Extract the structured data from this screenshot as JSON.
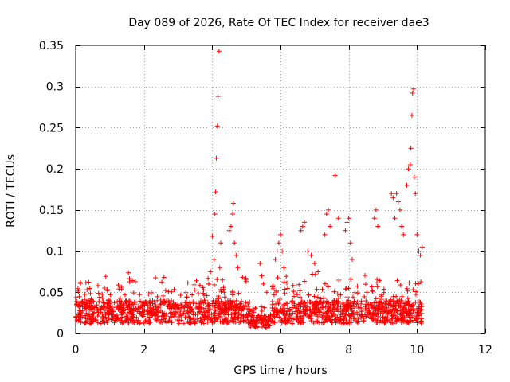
{
  "chart_data": {
    "type": "scatter",
    "title": "Day 089 of 2026, Rate Of TEC Index for receiver dae3",
    "xlabel": "GPS time / hours",
    "ylabel": "ROTI / TECUs",
    "xlim": [
      0,
      12
    ],
    "ylim": [
      0,
      0.35
    ],
    "x_ticks": [
      0,
      2,
      4,
      6,
      8,
      10,
      12
    ],
    "x_tick_labels": [
      "0",
      "2",
      "4",
      "6",
      "8",
      "10",
      "12"
    ],
    "y_ticks": [
      0,
      0.05,
      0.1,
      0.15,
      0.2,
      0.25,
      0.3,
      0.35
    ],
    "y_tick_labels": [
      "0",
      "0.05",
      "0.1",
      "0.15",
      "0.2",
      "0.25",
      "0.3",
      "0.35"
    ],
    "grid": true,
    "marker": "+",
    "color": "#ff0000",
    "series": [
      {
        "name": "ROTI",
        "points": [
          [
            4.0,
            0.118
          ],
          [
            4.05,
            0.09
          ],
          [
            4.08,
            0.145
          ],
          [
            4.1,
            0.172
          ],
          [
            4.12,
            0.213
          ],
          [
            4.15,
            0.252
          ],
          [
            4.17,
            0.288
          ],
          [
            4.2,
            0.343
          ],
          [
            4.22,
            0.08
          ],
          [
            4.25,
            0.11
          ],
          [
            3.9,
            0.06
          ],
          [
            3.95,
            0.075
          ],
          [
            4.3,
            0.065
          ],
          [
            4.35,
            0.05
          ],
          [
            4.5,
            0.125
          ],
          [
            4.55,
            0.13
          ],
          [
            4.6,
            0.145
          ],
          [
            4.62,
            0.158
          ],
          [
            4.65,
            0.11
          ],
          [
            4.7,
            0.095
          ],
          [
            4.75,
            0.08
          ],
          [
            5.4,
            0.085
          ],
          [
            5.45,
            0.07
          ],
          [
            5.5,
            0.06
          ],
          [
            5.6,
            0.05
          ],
          [
            5.85,
            0.09
          ],
          [
            5.9,
            0.1
          ],
          [
            5.95,
            0.11
          ],
          [
            6.0,
            0.12
          ],
          [
            6.05,
            0.1
          ],
          [
            6.1,
            0.08
          ],
          [
            6.6,
            0.125
          ],
          [
            6.65,
            0.13
          ],
          [
            6.7,
            0.135
          ],
          [
            6.8,
            0.1
          ],
          [
            6.9,
            0.095
          ],
          [
            7.0,
            0.085
          ],
          [
            7.1,
            0.075
          ],
          [
            7.3,
            0.12
          ],
          [
            7.35,
            0.145
          ],
          [
            7.4,
            0.15
          ],
          [
            7.45,
            0.13
          ],
          [
            7.6,
            0.192
          ],
          [
            7.7,
            0.14
          ],
          [
            7.9,
            0.125
          ],
          [
            7.95,
            0.135
          ],
          [
            8.0,
            0.14
          ],
          [
            8.05,
            0.11
          ],
          [
            8.1,
            0.09
          ],
          [
            8.75,
            0.14
          ],
          [
            8.8,
            0.15
          ],
          [
            8.85,
            0.13
          ],
          [
            9.25,
            0.17
          ],
          [
            9.3,
            0.165
          ],
          [
            9.35,
            0.14
          ],
          [
            9.4,
            0.17
          ],
          [
            9.45,
            0.16
          ],
          [
            9.5,
            0.15
          ],
          [
            9.55,
            0.13
          ],
          [
            9.6,
            0.12
          ],
          [
            9.7,
            0.18
          ],
          [
            9.75,
            0.2
          ],
          [
            9.8,
            0.205
          ],
          [
            9.82,
            0.225
          ],
          [
            9.85,
            0.265
          ],
          [
            9.87,
            0.292
          ],
          [
            9.9,
            0.297
          ],
          [
            9.92,
            0.19
          ],
          [
            9.95,
            0.17
          ],
          [
            10.0,
            0.12
          ],
          [
            10.05,
            0.1
          ],
          [
            10.1,
            0.095
          ],
          [
            10.15,
            0.105
          ]
        ]
      }
    ]
  }
}
